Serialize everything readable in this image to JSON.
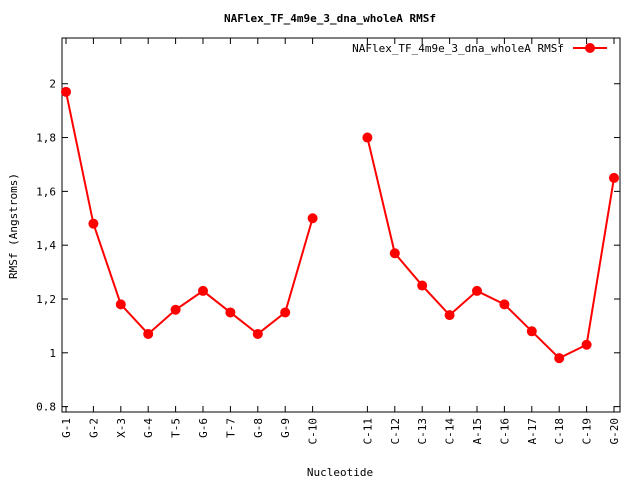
{
  "chart_data": {
    "type": "line",
    "title": "NAFlex_TF_4m9e_3_dna_wholeA RMSf",
    "xlabel": "Nucleotide",
    "ylabel": "RMSf (Angstroms)",
    "ylim": [
      0.78,
      2.17
    ],
    "yticks": [
      "0.8",
      "1",
      "1,2",
      "1,4",
      "1,6",
      "1,8",
      "2"
    ],
    "ytick_values": [
      0.8,
      1.0,
      1.2,
      1.4,
      1.6,
      1.8,
      2.0
    ],
    "grid": false,
    "legend": "top-right",
    "color": "#ff0000",
    "series": [
      {
        "name": "NAFlex_TF_4m9e_3_dna_wholeA RMSf",
        "segments": [
          {
            "x": [
              "G-1",
              "G-2",
              "X-3",
              "G-4",
              "T-5",
              "G-6",
              "T-7",
              "G-8",
              "G-9",
              "C-10"
            ],
            "y": [
              1.97,
              1.48,
              1.18,
              1.07,
              1.16,
              1.23,
              1.15,
              1.07,
              1.15,
              1.5
            ]
          },
          {
            "x": [
              "C-11",
              "C-12",
              "C-13",
              "C-14",
              "A-15",
              "C-16",
              "A-17",
              "C-18",
              "C-19",
              "G-20"
            ],
            "y": [
              1.8,
              1.37,
              1.25,
              1.14,
              1.23,
              1.18,
              1.08,
              0.98,
              1.03,
              1.65
            ]
          }
        ]
      }
    ]
  }
}
